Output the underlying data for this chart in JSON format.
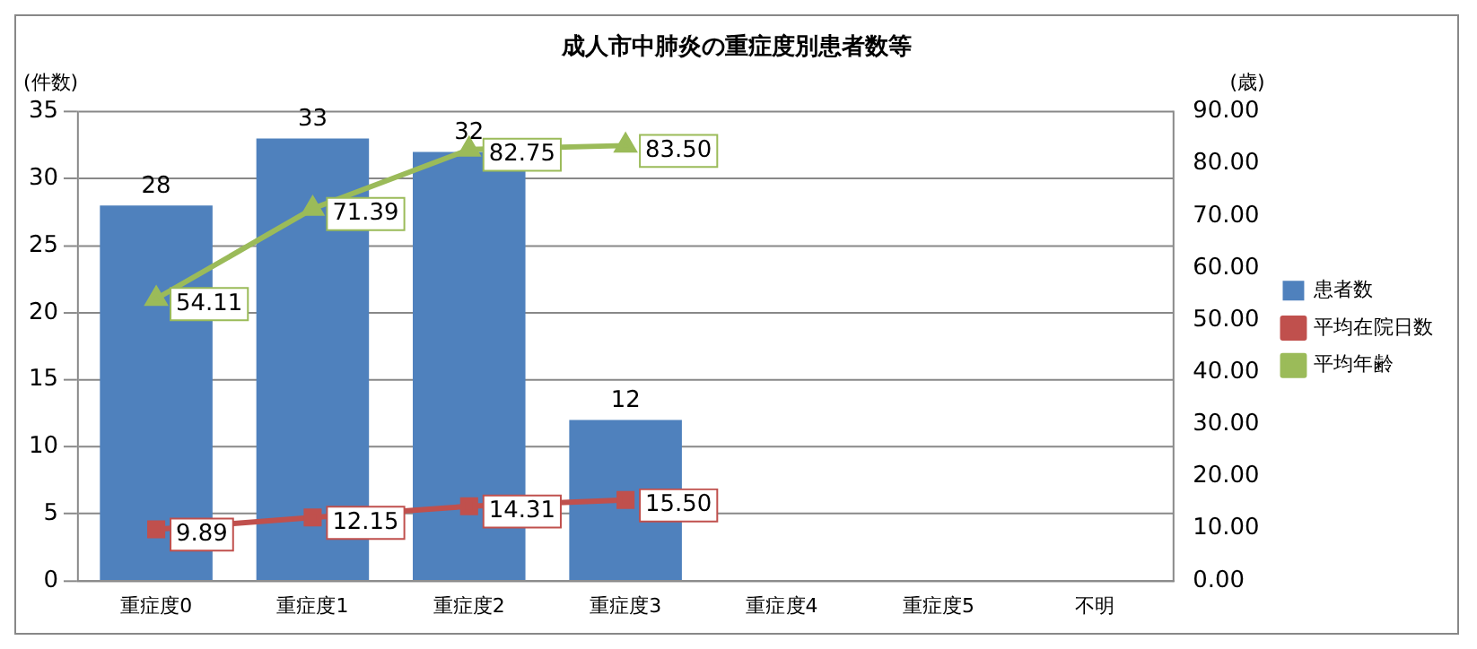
{
  "chart_data": {
    "type": "bar",
    "title": "成人市中肺炎の重症度別患者数等",
    "ylabel": "(件数)",
    "y2label": "(歳)",
    "categories": [
      "重症度0",
      "重症度1",
      "重症度2",
      "重症度3",
      "重症度4",
      "重症度5",
      "不明"
    ],
    "series": [
      {
        "name": "患者数",
        "color": "#4f81bd",
        "values": [
          28,
          33,
          32,
          12,
          null,
          null,
          null
        ]
      },
      {
        "name": "平均在院日数",
        "type": "line",
        "axis": "y2",
        "marker": "square",
        "color": "#c0504d",
        "values": [
          9.89,
          12.15,
          14.31,
          15.5,
          null,
          null,
          null
        ],
        "value_labels": [
          "9.89",
          "12.15",
          "14.31",
          "15.50",
          null,
          null,
          null
        ]
      },
      {
        "name": "平均年齢",
        "type": "line",
        "axis": "y2",
        "marker": "triangle",
        "color": "#9bbb59",
        "values": [
          54.11,
          71.39,
          82.75,
          83.5,
          null,
          null,
          null
        ],
        "value_labels": [
          "54.11",
          "71.39",
          "82.75",
          "83.50",
          null,
          null,
          null
        ]
      }
    ],
    "ylim": [
      0,
      35
    ],
    "yticks": [
      0,
      5,
      10,
      15,
      20,
      25,
      30,
      35
    ],
    "y2lim": [
      0,
      90
    ],
    "y2ticks": [
      {
        "value": 0,
        "label": "0.00"
      },
      {
        "value": 10,
        "label": "10.00"
      },
      {
        "value": 20,
        "label": "20.00"
      },
      {
        "value": 30,
        "label": "30.00"
      },
      {
        "value": 40,
        "label": "40.00"
      },
      {
        "value": 50,
        "label": "50.00"
      },
      {
        "value": 60,
        "label": "60.00"
      },
      {
        "value": 70,
        "label": "70.00"
      },
      {
        "value": 80,
        "label": "80.00"
      },
      {
        "value": 90,
        "label": "90.00"
      }
    ],
    "grid": "y",
    "legend": "right",
    "data_labels": true,
    "line_style": "solid"
  }
}
